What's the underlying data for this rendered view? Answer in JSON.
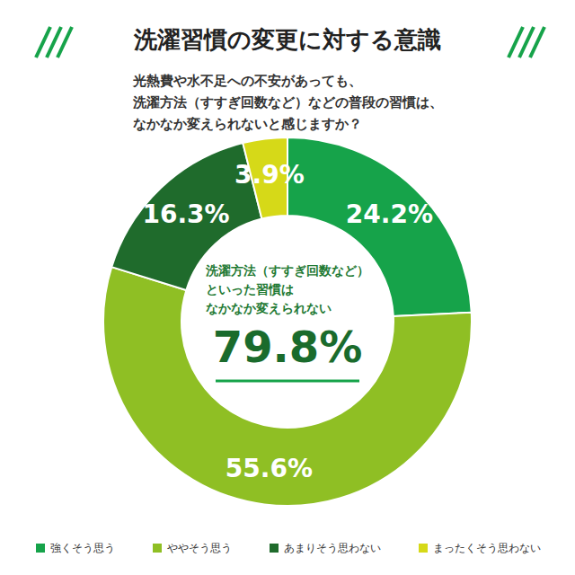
{
  "chart_data": {
    "type": "pie",
    "title": "洗濯習慣の変更に対する意識",
    "subtitle": [
      "光熱費や水不足への不安があっても、",
      "洗濯方法（すすぎ回数など）などの普段の習慣は、",
      "なかなか変えられないと感じますか？"
    ],
    "categories": [
      "強くそう思う",
      "ややそう思う",
      "あまりそう思わない",
      "まったくそう思わない"
    ],
    "values": [
      24.2,
      55.6,
      16.3,
      3.9
    ],
    "value_labels": [
      "24.2%",
      "55.6%",
      "16.3%",
      "3.9%"
    ],
    "colors": [
      "#16a34a",
      "#8fbf24",
      "#1f6b2c",
      "#d6d918"
    ],
    "data_labels": true,
    "legend": "bottom",
    "annotations": [
      {
        "text": [
          "洗濯方法（すすぎ回数など）",
          "といった習慣は",
          "なかなか変えられない"
        ]
      },
      {
        "text": "79.8%"
      }
    ]
  }
}
